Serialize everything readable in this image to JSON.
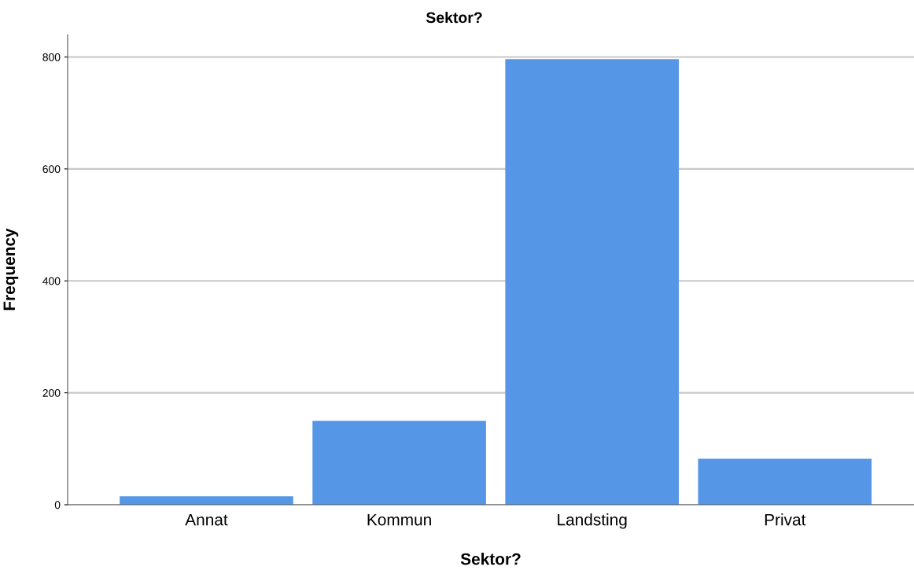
{
  "chart_data": {
    "type": "bar",
    "title": "Sektor?",
    "xlabel": "Sektor?",
    "ylabel": "Frequency",
    "categories": [
      "Annat",
      "Kommun",
      "Landsting",
      "Privat"
    ],
    "values": [
      15,
      150,
      796,
      82
    ],
    "color": "#5596e6",
    "ylim": [
      0,
      840
    ],
    "yticks": [
      0,
      200,
      400,
      600,
      800
    ],
    "grid": "y"
  }
}
